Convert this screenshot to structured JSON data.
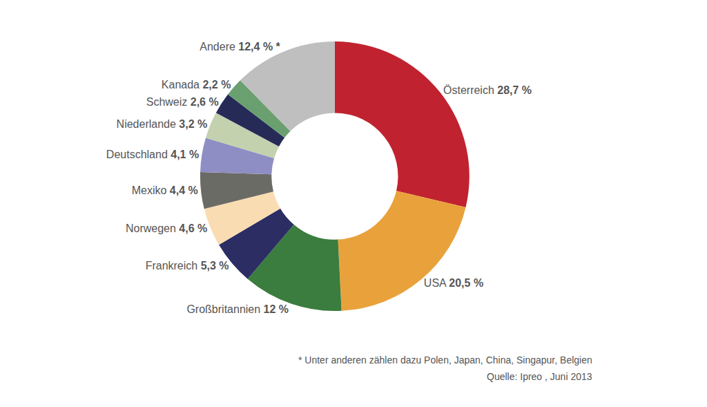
{
  "chart_data": {
    "type": "pie",
    "categories": [
      "Österreich",
      "USA",
      "Großbritannien",
      "Frankreich",
      "Norwegen",
      "Mexiko",
      "Deutschland",
      "Niederlande",
      "Schweiz",
      "Kanada",
      "Andere"
    ],
    "values": [
      28.7,
      20.5,
      12,
      5.3,
      4.6,
      4.4,
      4.1,
      3.2,
      2.6,
      2.2,
      12.4
    ],
    "value_labels": [
      "28,7 %",
      "20,5 %",
      "12 %",
      "5,3 %",
      "4,6 %",
      "4,4 %",
      "4,1 %",
      "3,2 %",
      "2,6 %",
      "2,2 %",
      "12,4 % *"
    ],
    "colors": [
      "#c0232f",
      "#e9a23b",
      "#3a7d3e",
      "#2b2d63",
      "#f9dcb1",
      "#6b6b66",
      "#8f8ec4",
      "#c3d1ae",
      "#262a57",
      "#6aa070",
      "#bfbfbf"
    ],
    "data_labels": true,
    "annotations": [
      "* Unter anderen zählen dazu Polen, Japan, China, Singapur, Belgien",
      "Quelle: Ipreo , Juni 2013"
    ]
  }
}
